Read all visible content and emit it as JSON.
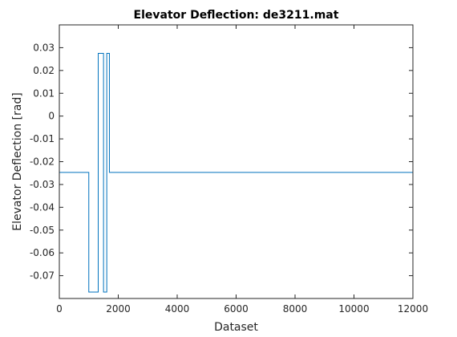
{
  "chart_data": {
    "type": "line",
    "title": "Elevator Deflection: de3211.mat",
    "xlabel": "Dataset",
    "ylabel": "Elevator Deflection [rad]",
    "xlim": [
      0,
      12000
    ],
    "ylim": [
      -0.08,
      0.04
    ],
    "xticks": [
      0,
      2000,
      4000,
      6000,
      8000,
      10000,
      12000
    ],
    "xtick_labels": [
      "0",
      "2000",
      "4000",
      "6000",
      "8000",
      "10000",
      "12000"
    ],
    "yticks": [
      0.03,
      0.02,
      0.01,
      0,
      -0.01,
      -0.02,
      -0.03,
      -0.04,
      -0.05,
      -0.06,
      -0.07
    ],
    "ytick_labels": [
      "0.03",
      "0.02",
      "0.01",
      "0",
      "-0.01",
      "-0.02",
      "-0.03",
      "-0.04",
      "-0.05",
      "-0.06",
      "-0.07"
    ],
    "grid": false,
    "box": true,
    "series_color": "#0072BD",
    "series": [
      {
        "x": [
          0,
          1000,
          1000,
          1320,
          1320,
          1500,
          1500,
          1610,
          1610,
          1700,
          1700,
          12000
        ],
        "y": [
          -0.0247,
          -0.0247,
          -0.0772,
          -0.0772,
          0.0275,
          0.0275,
          -0.0772,
          -0.0772,
          0.0275,
          0.0275,
          -0.0247,
          -0.0247
        ]
      }
    ]
  }
}
